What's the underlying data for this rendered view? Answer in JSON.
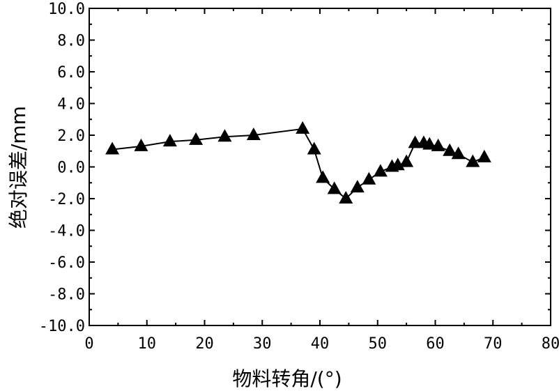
{
  "chart_data": {
    "type": "line",
    "title": "",
    "xlabel": "物料转角/(°)",
    "ylabel": "绝对误差/mm",
    "xlim": [
      0,
      80
    ],
    "ylim": [
      -10.0,
      10.0
    ],
    "x_ticks": [
      "0",
      "10",
      "20",
      "30",
      "40",
      "50",
      "60",
      "70",
      "80"
    ],
    "y_ticks": [
      "10.0",
      "8.0",
      "6.0",
      "4.0",
      "2.0",
      "0.0",
      "-2.0",
      "-4.0",
      "-6.0",
      "-8.0",
      "-10.0"
    ],
    "grid": false,
    "marker": "triangle",
    "colors": {
      "line": "#000000",
      "marker": "#000000",
      "axis": "#000000"
    },
    "series": [
      {
        "x": [
          4.0,
          9.0,
          14.0,
          18.5,
          23.5,
          28.5,
          37.0,
          39.0,
          40.5,
          42.5,
          44.5,
          46.5,
          48.5,
          50.5,
          52.5,
          53.5,
          55.0,
          56.5,
          58.0,
          59.0,
          60.5,
          62.5,
          64.0,
          66.5,
          68.5
        ],
        "y": [
          1.1,
          1.3,
          1.6,
          1.7,
          1.9,
          2.0,
          2.4,
          1.1,
          -0.7,
          -1.4,
          -2.0,
          -1.3,
          -0.8,
          -0.3,
          0.0,
          0.1,
          0.3,
          1.5,
          1.5,
          1.4,
          1.3,
          1.0,
          0.8,
          0.3,
          0.6
        ]
      }
    ]
  }
}
